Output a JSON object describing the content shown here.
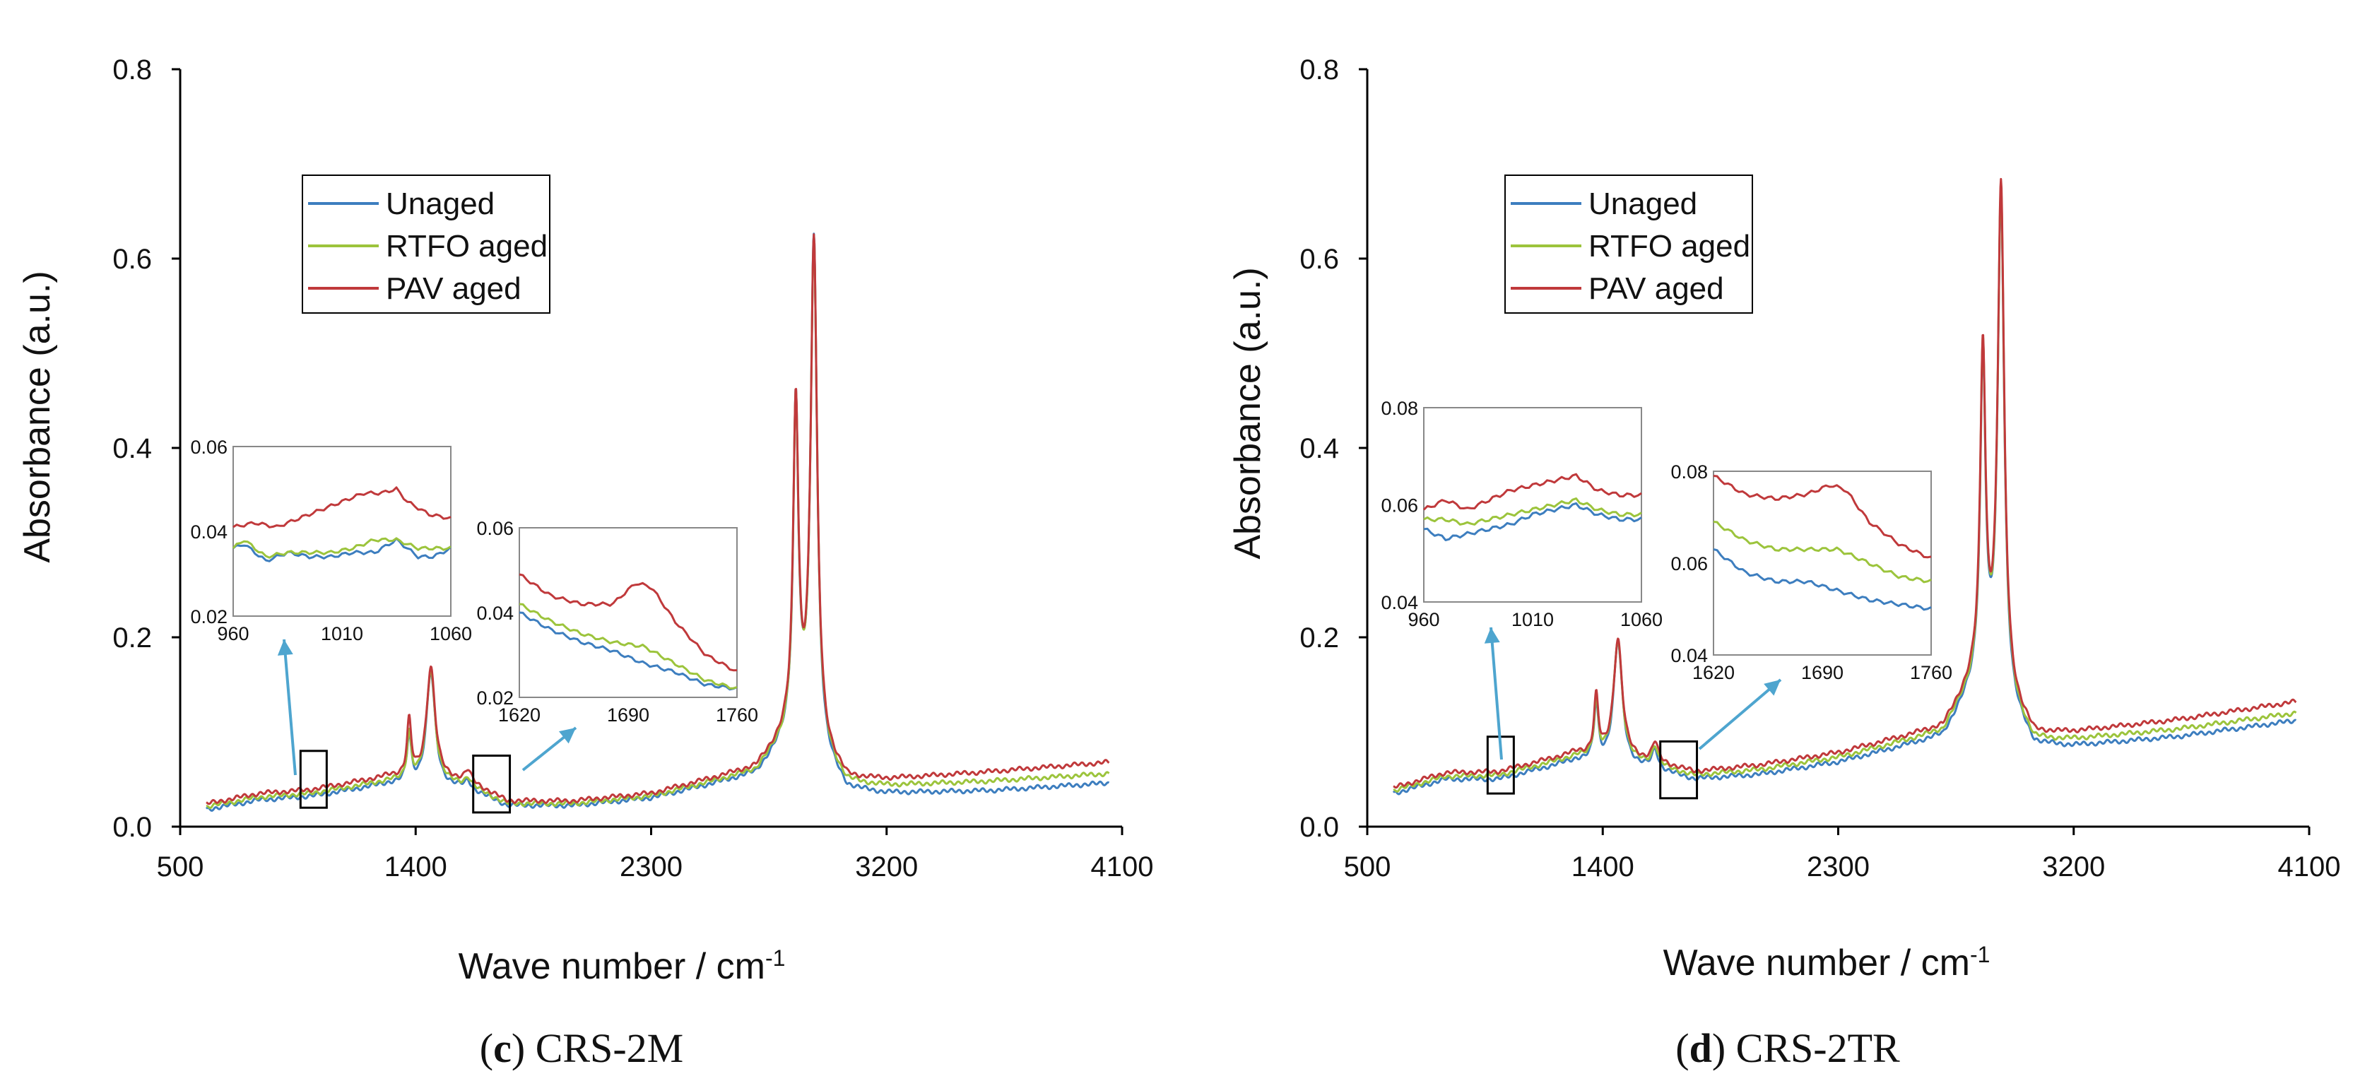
{
  "colors": {
    "Unaged": "#3d7ebf",
    "RTFO aged": "#9cc43c",
    "PAV aged": "#c0393b",
    "arrow": "#4ea5cf"
  },
  "chart_data": [
    {
      "id": "c",
      "type": "line",
      "caption": {
        "letter": "c",
        "name": " CRS-2M"
      },
      "xlabel": "Wave number / cm",
      "xlabel_sup": "-1",
      "ylabel": "Absorbance (a.u.)",
      "xlim": [
        500,
        4100
      ],
      "ylim": [
        0,
        0.8
      ],
      "xticks": [
        "500",
        "1400",
        "2300",
        "3200",
        "4100"
      ],
      "yticks": [
        "0.0",
        "0.2",
        "0.4",
        "0.6",
        "0.8"
      ],
      "legend": [
        "Unaged",
        "RTFO aged",
        "PAV aged"
      ],
      "baseline": {
        "Unaged": [
          [
            600,
            0.018
          ],
          [
            800,
            0.028
          ],
          [
            1000,
            0.032
          ],
          [
            1300,
            0.045
          ],
          [
            1600,
            0.04
          ],
          [
            1750,
            0.022
          ],
          [
            2000,
            0.022
          ],
          [
            2300,
            0.03
          ],
          [
            2700,
            0.055
          ],
          [
            2850,
            0.1
          ],
          [
            3050,
            0.038
          ],
          [
            3200,
            0.035
          ],
          [
            3600,
            0.038
          ],
          [
            4050,
            0.046
          ]
        ],
        "RTFO aged": [
          [
            600,
            0.021
          ],
          [
            800,
            0.031
          ],
          [
            1000,
            0.035
          ],
          [
            1300,
            0.048
          ],
          [
            1600,
            0.043
          ],
          [
            1750,
            0.024
          ],
          [
            2000,
            0.024
          ],
          [
            2300,
            0.032
          ],
          [
            2700,
            0.058
          ],
          [
            2850,
            0.103
          ],
          [
            3050,
            0.045
          ],
          [
            3200,
            0.043
          ],
          [
            3600,
            0.048
          ],
          [
            4050,
            0.056
          ]
        ],
        "PAV aged": [
          [
            600,
            0.024
          ],
          [
            800,
            0.035
          ],
          [
            1000,
            0.039
          ],
          [
            1300,
            0.053
          ],
          [
            1600,
            0.048
          ],
          [
            1750,
            0.027
          ],
          [
            2000,
            0.027
          ],
          [
            2300,
            0.035
          ],
          [
            2700,
            0.062
          ],
          [
            2850,
            0.108
          ],
          [
            3050,
            0.05
          ],
          [
            3200,
            0.05
          ],
          [
            3600,
            0.058
          ],
          [
            4050,
            0.068
          ]
        ]
      },
      "peaks": [
        {
          "x": 1375,
          "w": 10,
          "h": [
            0.05,
            0.05,
            0.058
          ]
        },
        {
          "x": 1458,
          "w": 20,
          "h": [
            0.12,
            0.12,
            0.118
          ]
        },
        {
          "x": 1600,
          "w": 14,
          "h": [
            0.007,
            0.008,
            0.01
          ]
        },
        {
          "x": 2853,
          "w": 12,
          "h": [
            0.34,
            0.335,
            0.335
          ]
        },
        {
          "x": 2922,
          "w": 15,
          "h": [
            0.54,
            0.532,
            0.528
          ]
        }
      ],
      "insets": [
        {
          "xlim": [
            960,
            1060
          ],
          "ylim": [
            0.02,
            0.06
          ],
          "xticks": [
            "960",
            "1010",
            "1060"
          ],
          "yticks": [
            "0.02",
            "0.04",
            "0.06"
          ],
          "series": {
            "Unaged": [
              [
                960,
                0.036
              ],
              [
                965,
                0.037
              ],
              [
                975,
                0.033
              ],
              [
                985,
                0.035
              ],
              [
                995,
                0.034
              ],
              [
                1005,
                0.034
              ],
              [
                1015,
                0.035
              ],
              [
                1025,
                0.035
              ],
              [
                1035,
                0.038
              ],
              [
                1045,
                0.034
              ],
              [
                1052,
                0.034
              ],
              [
                1060,
                0.036
              ]
            ],
            "RTFO aged": [
              [
                960,
                0.036
              ],
              [
                965,
                0.038
              ],
              [
                975,
                0.034
              ],
              [
                985,
                0.035
              ],
              [
                995,
                0.035
              ],
              [
                1005,
                0.035
              ],
              [
                1015,
                0.036
              ],
              [
                1025,
                0.038
              ],
              [
                1035,
                0.038
              ],
              [
                1045,
                0.036
              ],
              [
                1052,
                0.036
              ],
              [
                1060,
                0.036
              ]
            ],
            "PAV aged": [
              [
                960,
                0.041
              ],
              [
                970,
                0.042
              ],
              [
                980,
                0.041
              ],
              [
                990,
                0.043
              ],
              [
                1000,
                0.045
              ],
              [
                1010,
                0.047
              ],
              [
                1020,
                0.049
              ],
              [
                1028,
                0.049
              ],
              [
                1035,
                0.05
              ],
              [
                1040,
                0.047
              ],
              [
                1050,
                0.044
              ],
              [
                1060,
                0.043
              ]
            ]
          }
        },
        {
          "xlim": [
            1620,
            1760
          ],
          "ylim": [
            0.02,
            0.06
          ],
          "xticks": [
            "1620",
            "1690",
            "1760"
          ],
          "yticks": [
            "0.02",
            "0.04",
            "0.06"
          ],
          "series": {
            "Unaged": [
              [
                1620,
                0.04
              ],
              [
                1640,
                0.036
              ],
              [
                1660,
                0.033
              ],
              [
                1680,
                0.031
              ],
              [
                1700,
                0.028
              ],
              [
                1720,
                0.026
              ],
              [
                1740,
                0.023
              ],
              [
                1760,
                0.022
              ]
            ],
            "RTFO aged": [
              [
                1620,
                0.042
              ],
              [
                1640,
                0.038
              ],
              [
                1660,
                0.035
              ],
              [
                1680,
                0.033
              ],
              [
                1700,
                0.032
              ],
              [
                1720,
                0.028
              ],
              [
                1740,
                0.024
              ],
              [
                1760,
                0.022
              ]
            ],
            "PAV aged": [
              [
                1620,
                0.049
              ],
              [
                1640,
                0.044
              ],
              [
                1660,
                0.042
              ],
              [
                1680,
                0.042
              ],
              [
                1695,
                0.047
              ],
              [
                1705,
                0.046
              ],
              [
                1720,
                0.038
              ],
              [
                1740,
                0.03
              ],
              [
                1760,
                0.026
              ]
            ]
          }
        }
      ]
    },
    {
      "id": "d",
      "type": "line",
      "caption": {
        "letter": "d",
        "name": " CRS-2TR"
      },
      "xlabel": "Wave number / cm",
      "xlabel_sup": "-1",
      "ylabel": "Absorbance (a.u.)",
      "xlim": [
        500,
        4100
      ],
      "ylim": [
        0,
        0.8
      ],
      "xticks": [
        "500",
        "1400",
        "2300",
        "3200",
        "4100"
      ],
      "yticks": [
        "0.0",
        "0.2",
        "0.4",
        "0.6",
        "0.8"
      ],
      "legend": [
        "Unaged",
        "RTFO aged",
        "PAV aged"
      ],
      "baseline": {
        "Unaged": [
          [
            600,
            0.035
          ],
          [
            800,
            0.05
          ],
          [
            1000,
            0.05
          ],
          [
            1300,
            0.07
          ],
          [
            1600,
            0.06
          ],
          [
            1750,
            0.05
          ],
          [
            2000,
            0.055
          ],
          [
            2300,
            0.068
          ],
          [
            2700,
            0.095
          ],
          [
            2850,
            0.16
          ],
          [
            3050,
            0.085
          ],
          [
            3200,
            0.085
          ],
          [
            3600,
            0.095
          ],
          [
            4050,
            0.112
          ]
        ],
        "RTFO aged": [
          [
            600,
            0.038
          ],
          [
            800,
            0.053
          ],
          [
            1000,
            0.054
          ],
          [
            1300,
            0.074
          ],
          [
            1600,
            0.064
          ],
          [
            1750,
            0.054
          ],
          [
            2000,
            0.06
          ],
          [
            2300,
            0.073
          ],
          [
            2700,
            0.1
          ],
          [
            2850,
            0.165
          ],
          [
            3050,
            0.09
          ],
          [
            3200,
            0.092
          ],
          [
            3600,
            0.103
          ],
          [
            4050,
            0.12
          ]
        ],
        "PAV aged": [
          [
            600,
            0.041
          ],
          [
            800,
            0.057
          ],
          [
            1000,
            0.058
          ],
          [
            1300,
            0.078
          ],
          [
            1600,
            0.068
          ],
          [
            1750,
            0.058
          ],
          [
            2000,
            0.065
          ],
          [
            2300,
            0.078
          ],
          [
            2700,
            0.105
          ],
          [
            2850,
            0.17
          ],
          [
            3050,
            0.097
          ],
          [
            3200,
            0.1
          ],
          [
            3600,
            0.113
          ],
          [
            4050,
            0.132
          ]
        ]
      },
      "peaks": [
        {
          "x": 1375,
          "w": 10,
          "h": [
            0.06,
            0.06,
            0.06
          ]
        },
        {
          "x": 1458,
          "w": 20,
          "h": [
            0.13,
            0.128,
            0.125
          ]
        },
        {
          "x": 1600,
          "w": 14,
          "h": [
            0.02,
            0.02,
            0.02
          ]
        },
        {
          "x": 2853,
          "w": 12,
          "h": [
            0.33,
            0.33,
            0.33
          ]
        },
        {
          "x": 2922,
          "w": 15,
          "h": [
            0.53,
            0.53,
            0.53
          ]
        }
      ],
      "insets": [
        {
          "xlim": [
            960,
            1060
          ],
          "ylim": [
            0.04,
            0.08
          ],
          "xticks": [
            "960",
            "1010",
            "1060"
          ],
          "yticks": [
            "0.04",
            "0.06",
            "0.08"
          ],
          "series": {
            "Unaged": [
              [
                960,
                0.055
              ],
              [
                970,
                0.053
              ],
              [
                980,
                0.054
              ],
              [
                990,
                0.055
              ],
              [
                1000,
                0.056
              ],
              [
                1010,
                0.058
              ],
              [
                1020,
                0.059
              ],
              [
                1030,
                0.06
              ],
              [
                1040,
                0.058
              ],
              [
                1050,
                0.057
              ],
              [
                1060,
                0.057
              ]
            ],
            "RTFO aged": [
              [
                960,
                0.057
              ],
              [
                970,
                0.057
              ],
              [
                980,
                0.056
              ],
              [
                990,
                0.057
              ],
              [
                1000,
                0.058
              ],
              [
                1010,
                0.059
              ],
              [
                1020,
                0.06
              ],
              [
                1030,
                0.061
              ],
              [
                1040,
                0.059
              ],
              [
                1050,
                0.058
              ],
              [
                1060,
                0.058
              ]
            ],
            "PAV aged": [
              [
                960,
                0.059
              ],
              [
                970,
                0.061
              ],
              [
                980,
                0.059
              ],
              [
                990,
                0.061
              ],
              [
                1000,
                0.063
              ],
              [
                1010,
                0.064
              ],
              [
                1020,
                0.065
              ],
              [
                1030,
                0.066
              ],
              [
                1040,
                0.063
              ],
              [
                1050,
                0.062
              ],
              [
                1060,
                0.062
              ]
            ]
          }
        },
        {
          "xlim": [
            1620,
            1760
          ],
          "ylim": [
            0.04,
            0.08
          ],
          "xticks": [
            "1620",
            "1690",
            "1760"
          ],
          "yticks": [
            "0.04",
            "0.06",
            "0.08"
          ],
          "series": {
            "Unaged": [
              [
                1620,
                0.063
              ],
              [
                1640,
                0.058
              ],
              [
                1660,
                0.056
              ],
              [
                1680,
                0.056
              ],
              [
                1700,
                0.054
              ],
              [
                1720,
                0.052
              ],
              [
                1740,
                0.051
              ],
              [
                1760,
                0.05
              ]
            ],
            "RTFO aged": [
              [
                1620,
                0.069
              ],
              [
                1640,
                0.065
              ],
              [
                1660,
                0.063
              ],
              [
                1680,
                0.063
              ],
              [
                1700,
                0.063
              ],
              [
                1720,
                0.06
              ],
              [
                1740,
                0.057
              ],
              [
                1760,
                0.056
              ]
            ],
            "PAV aged": [
              [
                1620,
                0.079
              ],
              [
                1640,
                0.075
              ],
              [
                1660,
                0.074
              ],
              [
                1680,
                0.075
              ],
              [
                1695,
                0.077
              ],
              [
                1705,
                0.076
              ],
              [
                1720,
                0.069
              ],
              [
                1740,
                0.064
              ],
              [
                1760,
                0.061
              ]
            ]
          }
        }
      ]
    }
  ]
}
